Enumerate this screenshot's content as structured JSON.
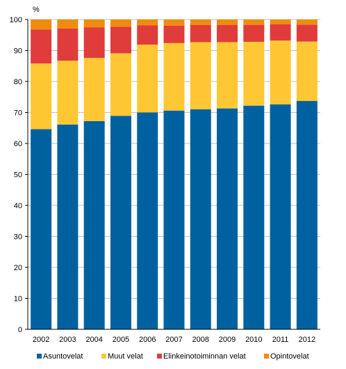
{
  "chart_data": {
    "type": "bar",
    "stacked": true,
    "unit_label": "%",
    "title": "",
    "xlabel": "",
    "ylabel": "",
    "ylim": [
      0,
      100
    ],
    "yticks": [
      0,
      10,
      20,
      30,
      40,
      50,
      60,
      70,
      80,
      90,
      100
    ],
    "grid": "horizontal",
    "legend_position": "bottom",
    "categories": [
      "2002",
      "2003",
      "2004",
      "2005",
      "2006",
      "2007",
      "2008",
      "2009",
      "2010",
      "2011",
      "2012"
    ],
    "series": [
      {
        "name": "Asuntovelat",
        "color": "#0061a0",
        "values": [
          64.6,
          66.1,
          67.2,
          68.9,
          70.0,
          70.6,
          71.0,
          71.3,
          72.2,
          72.6,
          73.7
        ]
      },
      {
        "name": "Muut velat",
        "color": "#ffc734",
        "values": [
          21.2,
          20.6,
          20.4,
          20.2,
          21.9,
          21.8,
          21.7,
          21.4,
          20.6,
          20.6,
          19.2
        ]
      },
      {
        "name": "Elinkeinotoiminnan velat",
        "color": "#e03c3c",
        "values": [
          11.0,
          10.4,
          9.9,
          8.6,
          6.2,
          5.6,
          5.5,
          5.5,
          5.4,
          5.3,
          5.4
        ]
      },
      {
        "name": "Opintovelat",
        "color": "#ef8c0e",
        "values": [
          3.2,
          2.9,
          2.5,
          2.3,
          1.9,
          2.0,
          1.8,
          1.8,
          1.8,
          1.5,
          1.7
        ]
      }
    ]
  }
}
